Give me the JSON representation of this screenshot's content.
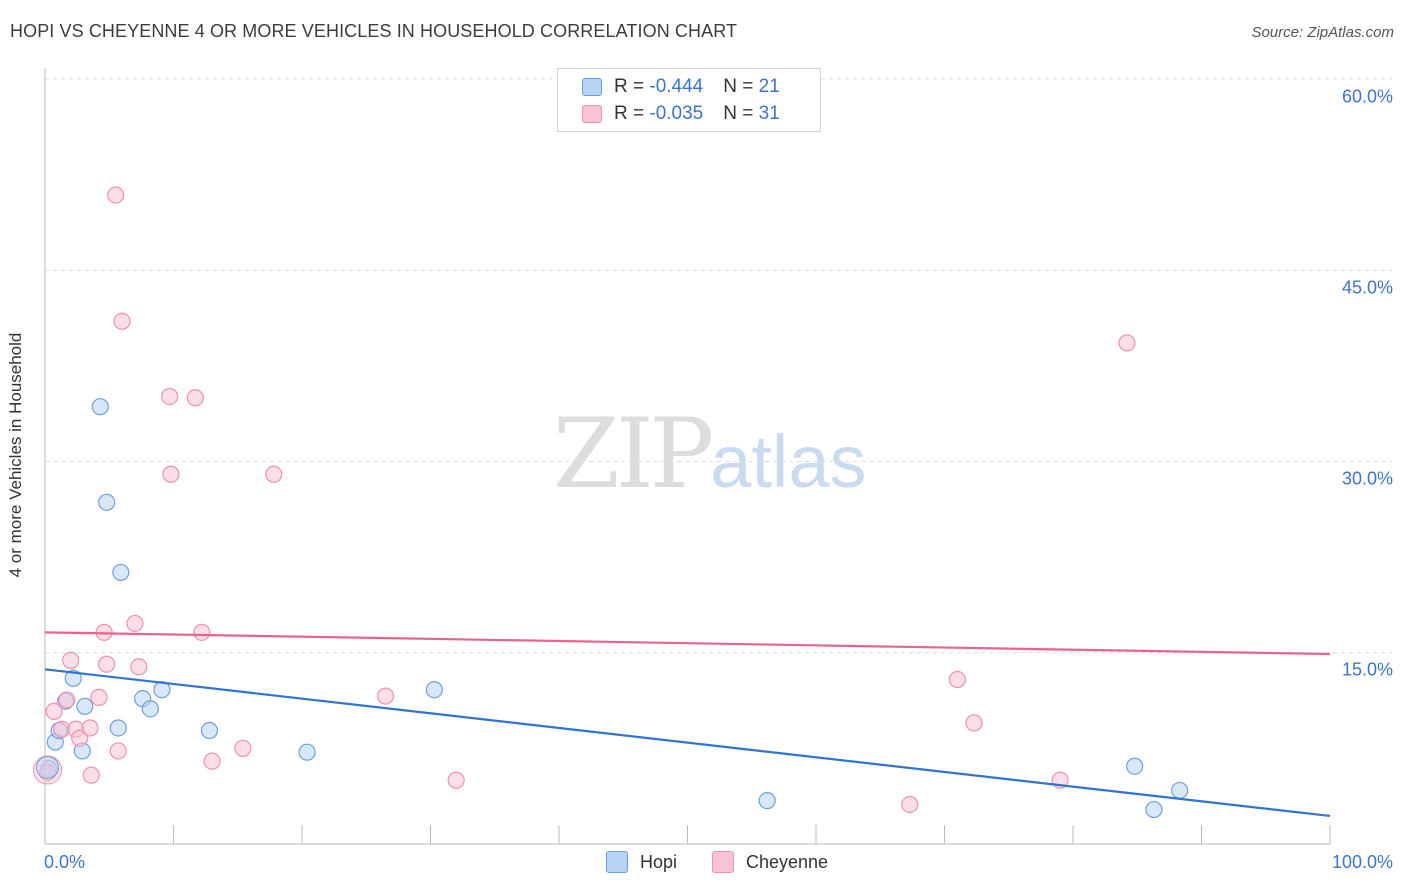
{
  "title": "HOPI VS CHEYENNE 4 OR MORE VEHICLES IN HOUSEHOLD CORRELATION CHART",
  "source": "Source: ZipAtlas.com",
  "watermark": {
    "zip": "ZIP",
    "atlas": "atlas"
  },
  "legend": {
    "hopi": {
      "r_label": "R = ",
      "r_value": "-0.444",
      "n_label": "N = ",
      "n_value": "21"
    },
    "cheyenne": {
      "r_label": "R = ",
      "r_value": "-0.035",
      "n_label": "N = ",
      "n_value": "31"
    }
  },
  "bottom_legend": {
    "hopi": "Hopi",
    "cheyenne": "Cheyenne"
  },
  "colors": {
    "hopi_fill": "#b8d3f5",
    "hopi_stroke": "#6f9fe0",
    "hopi_line": "#2f74d0",
    "cheyenne_fill": "#f8c3d3",
    "cheyenne_stroke": "#ee92ad",
    "cheyenne_line": "#e8648c",
    "tick_text": "#3e74c8"
  },
  "chart_data": {
    "type": "scatter",
    "title": "HOPI VS CHEYENNE 4 OR MORE VEHICLES IN HOUSEHOLD CORRELATION CHART",
    "xlabel": "",
    "ylabel": "4 or more Vehicles in Household",
    "xlim": [
      0,
      100
    ],
    "ylim": [
      0,
      60
    ],
    "x_tick_labels": [
      "0.0%",
      "100.0%"
    ],
    "y_ticks": [
      15,
      30,
      45,
      60
    ],
    "y_tick_labels": [
      "15.0%",
      "30.0%",
      "45.0%",
      "60.0%"
    ],
    "grid": true,
    "series": [
      {
        "name": "Hopi",
        "points": [
          [
            0.3,
            5.9
          ],
          [
            0.8,
            8.0
          ],
          [
            1.1,
            8.9
          ],
          [
            1.6,
            11.2
          ],
          [
            2.2,
            13.0
          ],
          [
            2.9,
            7.3
          ],
          [
            3.1,
            10.8
          ],
          [
            4.3,
            34.3
          ],
          [
            4.8,
            26.8
          ],
          [
            5.7,
            9.1
          ],
          [
            5.9,
            21.3
          ],
          [
            7.6,
            11.4
          ],
          [
            8.2,
            10.6
          ],
          [
            9.1,
            12.1
          ],
          [
            12.8,
            8.9
          ],
          [
            20.4,
            7.2
          ],
          [
            30.3,
            12.1
          ],
          [
            56.2,
            3.4
          ],
          [
            84.8,
            6.1
          ],
          [
            86.3,
            2.7
          ],
          [
            88.3,
            4.2
          ]
        ],
        "trend": {
          "x": [
            0,
            100
          ],
          "y": [
            13.7,
            2.2
          ]
        },
        "r": -0.444,
        "n": 21
      },
      {
        "name": "Cheyenne",
        "points": [
          [
            0.2,
            5.6
          ],
          [
            0.7,
            10.4
          ],
          [
            1.3,
            9.0
          ],
          [
            1.7,
            11.3
          ],
          [
            2.0,
            14.4
          ],
          [
            2.4,
            9.0
          ],
          [
            2.7,
            8.3
          ],
          [
            3.5,
            9.1
          ],
          [
            3.6,
            5.4
          ],
          [
            4.2,
            11.5
          ],
          [
            4.6,
            16.6
          ],
          [
            4.8,
            14.1
          ],
          [
            5.5,
            50.9
          ],
          [
            5.7,
            7.3
          ],
          [
            6.0,
            41.0
          ],
          [
            7.0,
            17.3
          ],
          [
            7.3,
            13.9
          ],
          [
            9.7,
            35.1
          ],
          [
            9.8,
            29.0
          ],
          [
            11.7,
            35.0
          ],
          [
            12.2,
            16.6
          ],
          [
            13.0,
            6.5
          ],
          [
            15.4,
            7.5
          ],
          [
            17.8,
            29.0
          ],
          [
            26.5,
            11.6
          ],
          [
            32.0,
            5.0
          ],
          [
            67.3,
            3.1
          ],
          [
            71.0,
            12.9
          ],
          [
            72.3,
            9.5
          ],
          [
            79.0,
            5.0
          ],
          [
            84.2,
            39.3
          ]
        ],
        "trend": {
          "x": [
            0,
            100
          ],
          "y": [
            16.6,
            14.9
          ]
        },
        "r": -0.035,
        "n": 31
      }
    ]
  }
}
